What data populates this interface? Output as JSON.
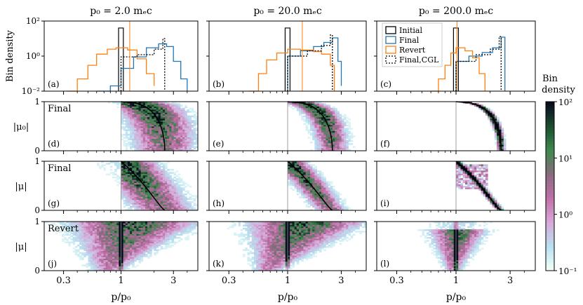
{
  "figure": {
    "column_titles": [
      "p₀ = 2.0 mₑc",
      "p₀ = 20.0 mₑc",
      "p₀ = 200.0 mₑc"
    ],
    "row_ylabels": [
      "Bin density",
      "|μ₀|",
      "|μ|",
      "|μ|"
    ],
    "row_tags": [
      "",
      "Final",
      "Final",
      "Revert"
    ],
    "panel_letters": [
      "(a)",
      "(b)",
      "(c)",
      "(d)",
      "(e)",
      "(f)",
      "(g)",
      "(h)",
      "(i)",
      "(j)",
      "(k)",
      "(l)"
    ],
    "xlabel": "p/p₀",
    "x_ticks": [
      "0.3",
      "1",
      "3"
    ],
    "hist_y_ticks": [
      "10²",
      "10⁰",
      "10⁻²"
    ],
    "mu_y_ticks": [
      "1",
      "0"
    ],
    "colorbar": {
      "title_line1": "Bin",
      "title_line2": "density",
      "ticks": [
        "10²",
        "10¹",
        "10⁰",
        "10⁻¹"
      ]
    },
    "legend": [
      "Initial",
      "Final",
      "Revert",
      "Final,CGL"
    ],
    "colors": {
      "initial": "#000000",
      "final": "#1f77b4",
      "revert": "#ff7f0e",
      "cgl": "#000000",
      "cmap": [
        "#f0fff8",
        "#b8dff0",
        "#d8a8d8",
        "#c070a8",
        "#8a6a80",
        "#3f8a4e",
        "#1e4e30",
        "#0a0f1f"
      ]
    }
  },
  "chart_data": [
    {
      "type": "histogram",
      "panel": "(a)",
      "p0": 2.0,
      "xscale": "log",
      "yscale": "log",
      "xlim": [
        0.2,
        5
      ],
      "ylim": [
        0.01,
        100
      ],
      "series": [
        {
          "name": "Initial",
          "x": [
            0.95,
            1.05
          ],
          "y": 40
        },
        {
          "name": "Final",
          "x": [
            0.6,
            0.8,
            1.0,
            1.3,
            1.7,
            2.2,
            2.6,
            3.0,
            3.5,
            4.0
          ],
          "y": [
            0.01,
            0.02,
            0.2,
            0.9,
            3.0,
            5.0,
            3.5,
            0.5,
            0.05,
            0.01
          ]
        },
        {
          "name": "Revert",
          "x": [
            0.32,
            0.4,
            0.5,
            0.6,
            0.75,
            0.9,
            1.0,
            1.15,
            1.4,
            1.7,
            2.0
          ],
          "y": [
            0.01,
            0.05,
            0.3,
            1.3,
            2.5,
            3.0,
            3.0,
            2.2,
            0.7,
            0.1,
            0.02
          ]
        },
        {
          "name": "Final,CGL",
          "x": [
            1.0,
            1.4,
            2.0,
            2.4,
            2.5
          ],
          "y": [
            0.9,
            1.2,
            2.5,
            10,
            0.01
          ]
        }
      ]
    },
    {
      "type": "histogram",
      "panel": "(b)",
      "p0": 20.0,
      "xscale": "log",
      "yscale": "log",
      "xlim": [
        0.2,
        5
      ],
      "ylim": [
        0.01,
        100
      ],
      "series": [
        {
          "name": "Initial",
          "x": [
            0.95,
            1.05
          ],
          "y": 40
        },
        {
          "name": "Final",
          "x": [
            1.0,
            1.3,
            1.7,
            2.1,
            2.5,
            2.8,
            3.0
          ],
          "y": [
            1.0,
            2.0,
            3.5,
            6.0,
            11,
            0.5,
            0.02
          ]
        },
        {
          "name": "Revert",
          "x": [
            0.45,
            0.55,
            0.65,
            0.8,
            1.0,
            1.3,
            1.7,
            2.0,
            2.4,
            2.6
          ],
          "y": [
            0.01,
            0.1,
            0.6,
            1.5,
            2.5,
            2.2,
            1.8,
            1.3,
            0.3,
            0.01
          ]
        },
        {
          "name": "Final,CGL",
          "x": [
            1.0,
            1.5,
            2.0,
            2.4,
            2.5
          ],
          "y": [
            1.0,
            2.0,
            4.0,
            16,
            0.01
          ]
        }
      ]
    },
    {
      "type": "histogram",
      "panel": "(c)",
      "p0": 200.0,
      "xscale": "log",
      "yscale": "log",
      "xlim": [
        0.2,
        5
      ],
      "ylim": [
        0.01,
        100
      ],
      "series": [
        {
          "name": "Initial",
          "x": [
            0.95,
            1.05
          ],
          "y": 40
        },
        {
          "name": "Final",
          "x": [
            1.0,
            1.3,
            1.7,
            2.1,
            2.5,
            2.7
          ],
          "y": [
            0.5,
            1.0,
            1.6,
            3.0,
            12,
            0.01
          ]
        },
        {
          "name": "Revert",
          "x": [
            0.6,
            0.7,
            0.8,
            0.9,
            1.0,
            1.2,
            1.4,
            1.6,
            1.8
          ],
          "y": [
            0.01,
            0.05,
            0.3,
            1.5,
            3.0,
            2.0,
            0.8,
            0.1,
            0.01
          ]
        },
        {
          "name": "Final,CGL",
          "x": [
            1.0,
            1.5,
            2.0,
            2.4,
            2.5
          ],
          "y": [
            0.5,
            1.2,
            2.5,
            13,
            0.01
          ]
        }
      ]
    },
    {
      "type": "heatmap",
      "panels": [
        "(d)",
        "(e)",
        "(f)",
        "(g)",
        "(h)",
        "(i)",
        "(j)",
        "(k)",
        "(l)"
      ],
      "xscale": "log",
      "xlim": [
        0.2,
        5
      ],
      "ylim": [
        0,
        1
      ],
      "colorbar": {
        "scale": "log",
        "range": [
          0.1,
          100
        ]
      }
    },
    {
      "type": "line",
      "description_key": "theory_curve",
      "panels": [
        "(d)",
        "(e)",
        "(f)"
      ],
      "x": [
        1.0,
        1.5,
        2.0,
        2.5
      ],
      "y": [
        1.0,
        0.85,
        0.6,
        0.0
      ]
    },
    {
      "type": "line",
      "panels": [
        "(g)",
        "(h)",
        "(i)"
      ],
      "x": [
        1.0,
        1.5,
        2.0,
        2.5
      ],
      "y": [
        1.0,
        0.6,
        0.3,
        0.0
      ]
    }
  ]
}
